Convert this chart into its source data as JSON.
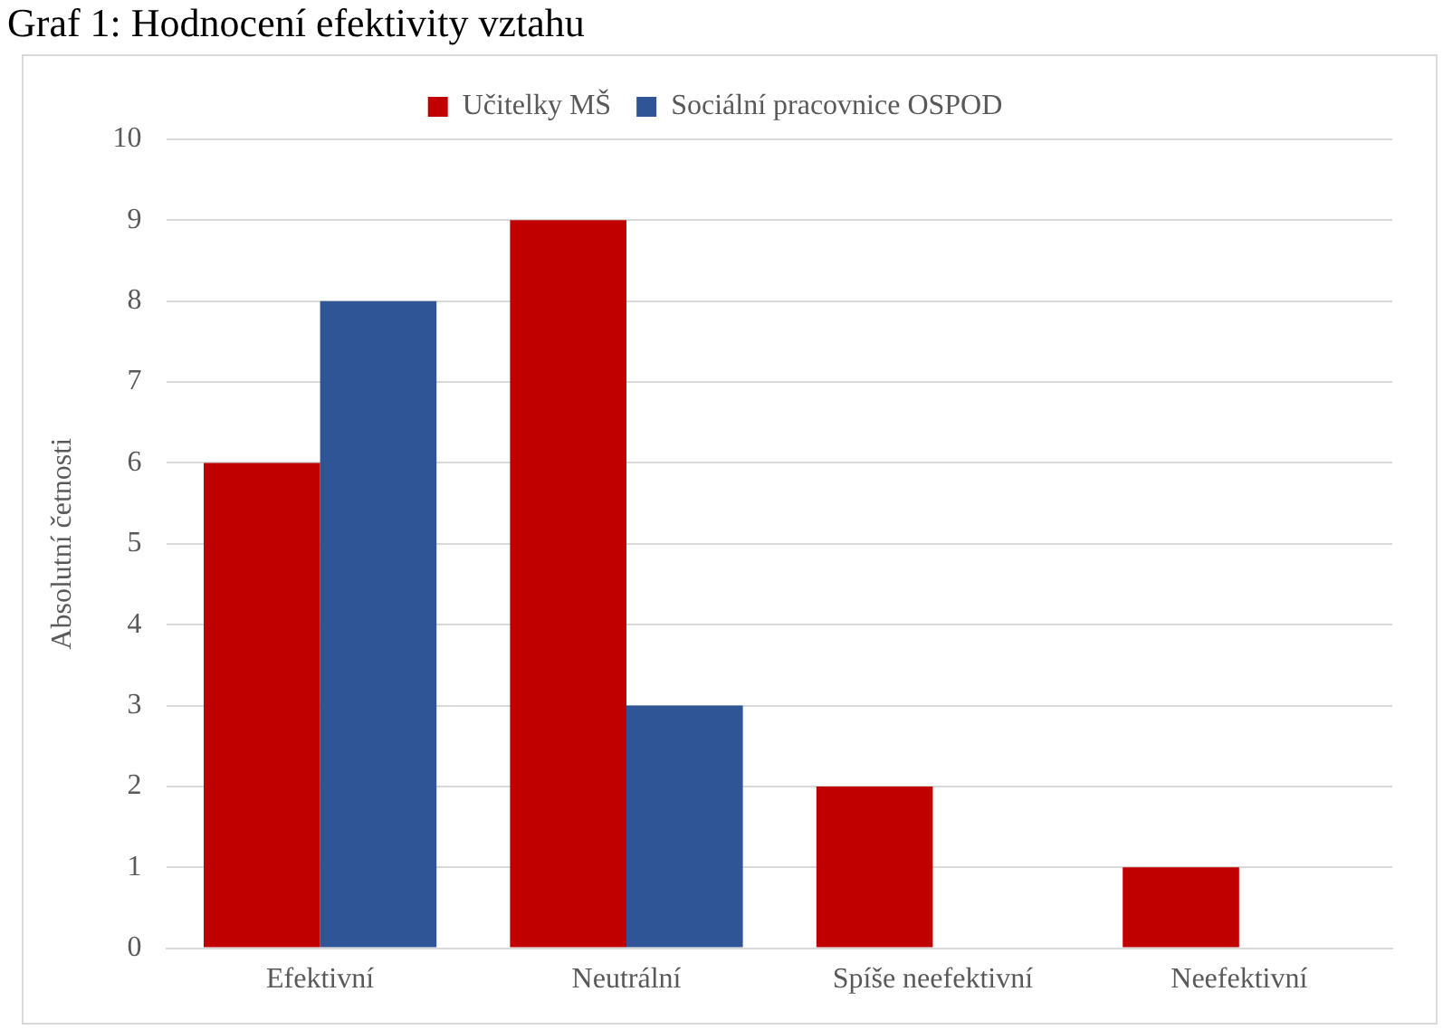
{
  "chart_data": {
    "type": "bar",
    "title": "Graf 1: Hodnocení efektivity vztahu",
    "ylabel": "Absolutní četnosti",
    "categories": [
      "Efektivní",
      "Neutrální",
      "Spíše neefektivní",
      "Neefektivní"
    ],
    "series": [
      {
        "name": "Učitelky MŠ",
        "color": "#c00000",
        "values": [
          6,
          9,
          2,
          1
        ]
      },
      {
        "name": "Sociální pracovnice OSPOD",
        "color": "#2f5597",
        "values": [
          8,
          3,
          0,
          0
        ]
      }
    ],
    "ylim": [
      0,
      10
    ],
    "yticks": [
      0,
      1,
      2,
      3,
      4,
      5,
      6,
      7,
      8,
      9,
      10
    ],
    "grid": "y",
    "legend": "top"
  }
}
